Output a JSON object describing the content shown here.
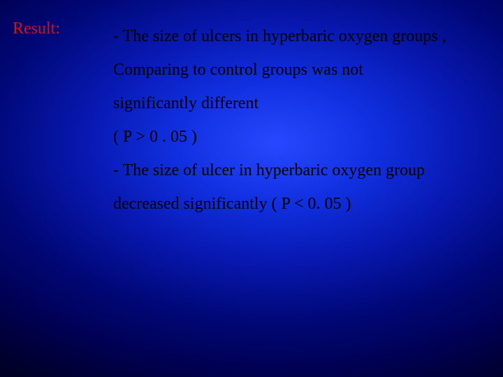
{
  "slide": {
    "label": "Result:",
    "paragraphs": [
      "- The size of ulcers in hyperbaric oxygen groups ,",
      "Comparing to control groups was not",
      "significantly different",
      "( P > 0 . 05 )",
      "- The size of ulcer in hyperbaric oxygen group",
      "decreased significantly ( P < 0. 05 )"
    ],
    "colors": {
      "label_color": "#d01020",
      "body_color": "#000000"
    },
    "typography": {
      "font_family": "Times New Roman",
      "label_fontsize": 24,
      "body_fontsize": 24,
      "line_height": 2.0
    }
  }
}
